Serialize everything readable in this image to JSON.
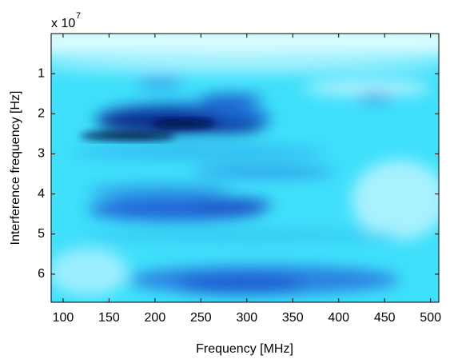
{
  "chart_data": {
    "type": "heatmap",
    "x_label": "Frequency [MHz]",
    "y_label": "Interference frequency [Hz]",
    "y_multiplier_base": "x 10",
    "y_multiplier_exponent": "7",
    "xlim": [
      87,
      509
    ],
    "ylim": [
      0,
      67000000
    ],
    "y_reversed": true,
    "xticks": [
      100,
      150,
      200,
      250,
      300,
      350,
      400,
      450,
      500
    ],
    "yticks": [
      {
        "value": 10000000,
        "label": "1"
      },
      {
        "value": 20000000,
        "label": "2"
      },
      {
        "value": 30000000,
        "label": "3"
      },
      {
        "value": 40000000,
        "label": "4"
      },
      {
        "value": 50000000,
        "label": "5"
      },
      {
        "value": 60000000,
        "label": "6"
      }
    ]
  }
}
